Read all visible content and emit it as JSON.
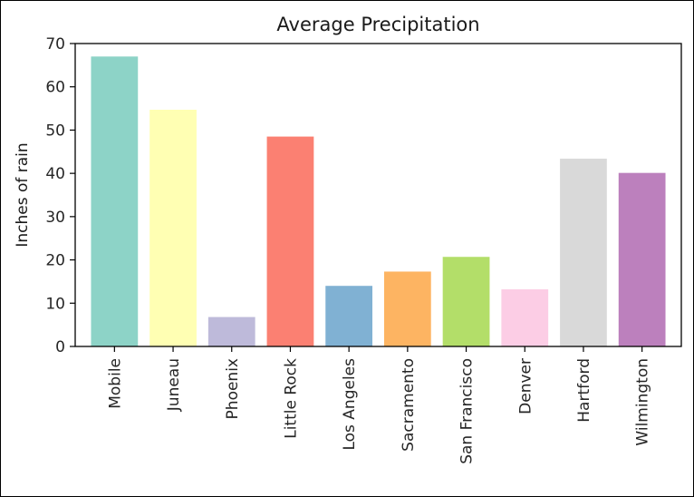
{
  "chart_data": {
    "type": "bar",
    "title": "Average Precipitation",
    "xlabel": "",
    "ylabel": "Inches of rain",
    "ylim": [
      0,
      70
    ],
    "yticks": [
      0,
      10,
      20,
      30,
      40,
      50,
      60,
      70
    ],
    "categories": [
      "Mobile",
      "Juneau",
      "Phoenix",
      "Little Rock",
      "Los Angeles",
      "Sacramento",
      "San Francisco",
      "Denver",
      "Hartford",
      "Wilmington"
    ],
    "values": [
      67,
      54.7,
      6.8,
      48.5,
      14,
      17.3,
      20.7,
      13.2,
      43.4,
      40.1
    ],
    "colors": [
      "#8dd3c7",
      "#ffffb3",
      "#bebada",
      "#fb8072",
      "#80b1d3",
      "#fdb462",
      "#b3de69",
      "#fccde5",
      "#d9d9d9",
      "#bc80bd"
    ],
    "grid": false,
    "legend": "none"
  }
}
